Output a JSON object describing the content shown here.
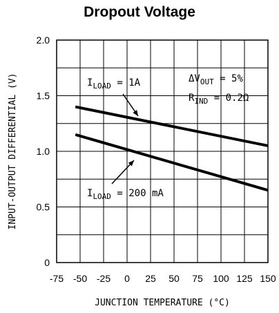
{
  "chart_data": {
    "type": "line",
    "title": "Dropout Voltage",
    "xlabel": "JUNCTION TEMPERATURE (°C)",
    "ylabel": "INPUT-OUTPUT DIFFERENTIAL (V)",
    "xlim": [
      -75,
      150
    ],
    "ylim": [
      0,
      2.0
    ],
    "x_ticks": [
      "-75",
      "-50",
      "-25",
      "0",
      "25",
      "50",
      "75",
      "100",
      "125",
      "150"
    ],
    "y_ticks": [
      "0",
      "0.5",
      "1.0",
      "1.5",
      "2.0"
    ],
    "x_tick_values": [
      -75,
      -50,
      -25,
      0,
      25,
      50,
      75,
      100,
      125,
      150
    ],
    "y_tick_values": [
      0,
      0.5,
      1.0,
      1.5,
      2.0
    ],
    "grid": true,
    "series": [
      {
        "name": "ILOAD = 1A",
        "x": [
          -55,
          150
        ],
        "y": [
          1.4,
          1.05
        ]
      },
      {
        "name": "ILOAD = 200 mA",
        "x": [
          -55,
          150
        ],
        "y": [
          1.15,
          0.65
        ]
      }
    ],
    "annotations": {
      "label_1a": {
        "prefix": "I",
        "sub": "LOAD",
        "suffix": " = 1A"
      },
      "label_200ma": {
        "prefix": "I",
        "sub": "LOAD",
        "suffix": " = 200 mA"
      },
      "dvout": {
        "prefix": "ΔV",
        "sub": "OUT",
        "suffix": " = 5%"
      },
      "rind": {
        "prefix": "R",
        "sub": "IND",
        "suffix": " = 0.2Ω"
      }
    }
  }
}
